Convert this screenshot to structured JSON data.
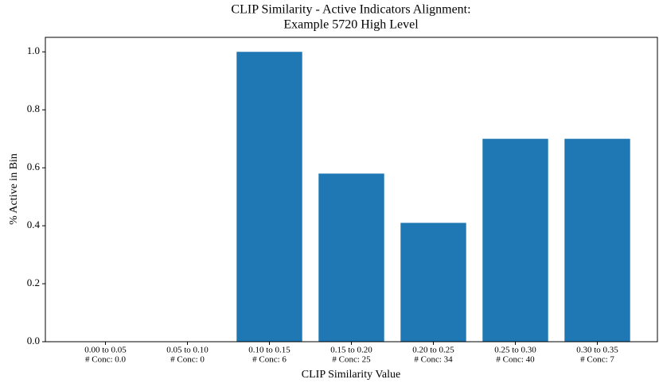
{
  "chart_data": {
    "type": "bar",
    "title": [
      "CLIP Similarity - Active Indicators Alignment:",
      "Example 5720 High Level"
    ],
    "xlabel": "CLIP Similarity Value",
    "ylabel": "% Active in Bin",
    "categories": [
      [
        "0.00 to 0.05",
        "# Conc: 0.0"
      ],
      [
        "0.05 to 0.10",
        "# Conc: 0"
      ],
      [
        "0.10 to 0.15",
        "# Conc: 6"
      ],
      [
        "0.15 to 0.20",
        "# Conc: 25"
      ],
      [
        "0.20 to 0.25",
        "# Conc: 34"
      ],
      [
        "0.25 to 0.30",
        "# Conc: 40"
      ],
      [
        "0.30 to 0.35",
        "# Conc: 7"
      ]
    ],
    "values": [
      0,
      0,
      1.0,
      0.58,
      0.41,
      0.7,
      0.7
    ],
    "color": "#1f77b4",
    "ylim": [
      0,
      1.05
    ],
    "yticks": [
      {
        "value": 0,
        "label": "0.0"
      },
      0.2,
      0.4,
      0.6,
      0.8,
      {
        "value": 1,
        "label": "1.0"
      }
    ],
    "grid": false
  }
}
